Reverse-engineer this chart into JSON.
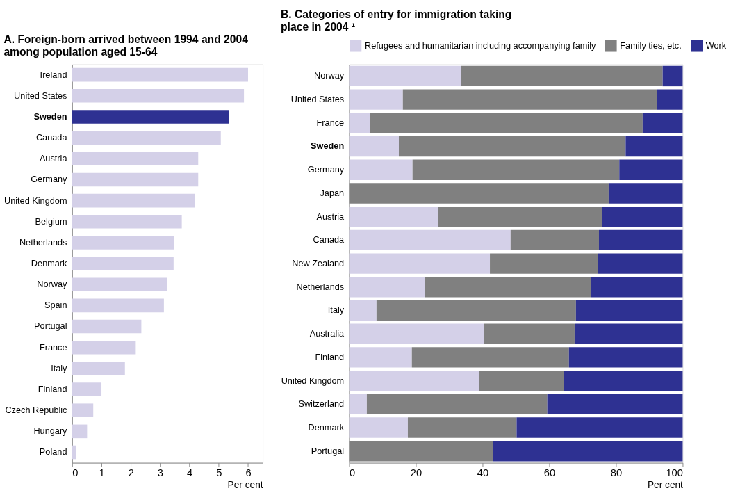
{
  "chart_data": [
    {
      "type": "bar",
      "orientation": "horizontal",
      "title": "A. Foreign-born arrived between 1994 and 2004 among population aged 15-64",
      "xlabel": "Per cent",
      "categories": [
        "Ireland",
        "United States",
        "Sweden",
        "Canada",
        "Austria",
        "Germany",
        "United Kingdom",
        "Belgium",
        "Netherlands",
        "Denmark",
        "Norway",
        "Spain",
        "Portugal",
        "France",
        "Italy",
        "Finland",
        "Czech Republic",
        "Hungary",
        "Poland"
      ],
      "values": [
        6.0,
        5.86,
        5.35,
        5.07,
        4.3,
        4.3,
        4.18,
        3.74,
        3.48,
        3.46,
        3.25,
        3.13,
        2.36,
        2.17,
        1.8,
        1.0,
        0.72,
        0.51,
        0.14
      ],
      "colors": [
        "#d4d0e8",
        "#d4d0e8",
        "#2e3192",
        "#d4d0e8",
        "#d4d0e8",
        "#d4d0e8",
        "#d4d0e8",
        "#d4d0e8",
        "#d4d0e8",
        "#d4d0e8",
        "#d4d0e8",
        "#d4d0e8",
        "#d4d0e8",
        "#d4d0e8",
        "#d4d0e8",
        "#d4d0e8",
        "#d4d0e8",
        "#d4d0e8",
        "#d4d0e8"
      ],
      "xlim": [
        0,
        6.5
      ],
      "xticks": [
        0,
        1,
        2,
        3,
        4,
        5,
        6
      ],
      "grid": false,
      "legend": false
    },
    {
      "type": "bar",
      "orientation": "horizontal",
      "stacked": true,
      "title": "B. Categories of entry for immigration taking place in 2004 ¹",
      "xlabel": "Per cent",
      "categories": [
        "Norway",
        "United States",
        "France",
        "Sweden",
        "Germany",
        "Japan",
        "Austria",
        "Canada",
        "New Zealand",
        "Netherlands",
        "Italy",
        "Australia",
        "Finland",
        "United Kingdom",
        "Switzerland",
        "Denmark",
        "Portugal"
      ],
      "series": [
        {
          "name": "Refugees and humanitarian including accompanying family",
          "color": "#d4d0e8",
          "values": [
            33.5,
            16.1,
            6.3,
            14.9,
            19,
            0,
            26.7,
            48.4,
            42.2,
            22.7,
            8.2,
            40.4,
            18.8,
            39,
            5.3,
            17.6,
            0
          ]
        },
        {
          "name": "Family ties, etc.",
          "color": "#808080",
          "values": [
            60.5,
            76.1,
            81.7,
            68,
            62,
            77.8,
            49.2,
            26.5,
            32.3,
            49.7,
            59.8,
            27.2,
            47.1,
            25.3,
            54.1,
            32.6,
            43.1
          ]
        },
        {
          "name": "Work",
          "color": "#2e3192",
          "values": [
            6,
            7.8,
            12,
            17.1,
            19,
            22.2,
            24.1,
            25.1,
            25.5,
            27.6,
            32,
            32.4,
            34.1,
            35.7,
            40.6,
            49.8,
            56.9
          ]
        }
      ],
      "xlim": [
        0,
        100
      ],
      "xticks": [
        0,
        20,
        40,
        60,
        80,
        100
      ],
      "grid": false,
      "legend": "top"
    }
  ]
}
